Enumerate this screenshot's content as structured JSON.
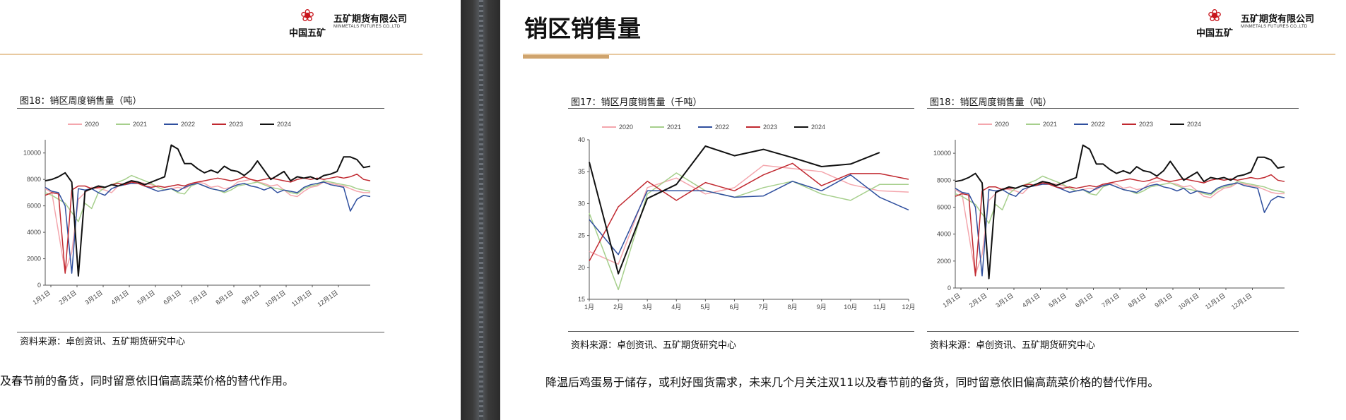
{
  "brand": {
    "name_cn": "五矿期货有限公司",
    "name_en": "MINMETALS FUTURES CO.,LTD",
    "group_cn": "中国五矿",
    "logo_icon": "minmetals-logo-icon"
  },
  "colors": {
    "accent": "#cfa46e",
    "series": [
      "#f4a6ad",
      "#a6cf8c",
      "#2f4f9e",
      "#c0282f",
      "#111111"
    ]
  },
  "left_page": {
    "figure_title": "图18：销区周度销售量（吨）",
    "source": "资料来源：卓创资讯、五矿期货研究中心",
    "body_text": "及春节前的备货，同时留意依旧偏高蔬菜价格的替代作用。"
  },
  "right_page": {
    "title": "销区销售量",
    "figure17": {
      "title": "图17：销区月度销售量（千吨）",
      "source": "资料来源：卓创资讯、五矿期货研究中心"
    },
    "figure18": {
      "title": "图18：销区周度销售量（吨）",
      "source": "资料来源：卓创资讯、五矿期货研究中心"
    },
    "body_text": "降温后鸡蛋易于储存，或利好囤货需求，未来几个月关注双11以及春节前的备货，同时留意依旧偏高蔬菜价格的替代作用。"
  },
  "chart_data": [
    {
      "id": "monthly",
      "type": "line",
      "title": "图17：销区月度销售量（千吨）",
      "categories": [
        "1月",
        "2月",
        "3月",
        "4月",
        "5月",
        "6月",
        "7月",
        "8月",
        "9月",
        "10月",
        "11月",
        "12月"
      ],
      "ylim": [
        15,
        40
      ],
      "yticks": [
        15,
        20,
        25,
        30,
        35,
        40
      ],
      "legend": "top",
      "series": [
        {
          "name": "2020",
          "color": "#f4a6ad",
          "values": [
            22.5,
            20.5,
            32.5,
            34.0,
            31.5,
            32.5,
            36.0,
            35.5,
            35.0,
            33.0,
            32.0,
            31.8
          ]
        },
        {
          "name": "2021",
          "color": "#a6cf8c",
          "values": [
            28.5,
            16.5,
            31.5,
            34.8,
            32.0,
            31.0,
            32.5,
            33.5,
            31.5,
            30.5,
            33.0,
            33.0
          ]
        },
        {
          "name": "2022",
          "color": "#2f4f9e",
          "values": [
            27.5,
            22.0,
            32.0,
            32.0,
            32.0,
            31.0,
            31.2,
            33.5,
            32.0,
            34.5,
            31.0,
            29.0
          ]
        },
        {
          "name": "2023",
          "color": "#c0282f",
          "values": [
            21.0,
            29.5,
            33.5,
            30.5,
            33.3,
            32.0,
            34.5,
            36.3,
            32.8,
            34.7,
            34.7,
            33.8
          ]
        },
        {
          "name": "2024",
          "color": "#111111",
          "values": [
            36.5,
            19.0,
            30.8,
            33.0,
            39.0,
            37.5,
            38.5,
            37.2,
            35.8,
            36.2,
            38.0,
            null
          ]
        }
      ]
    },
    {
      "id": "weekly",
      "type": "line",
      "title": "图18：销区周度销售量（吨）",
      "x_tick_labels": [
        "1月1日",
        "2月1日",
        "3月1日",
        "4月1日",
        "5月1日",
        "6月1日",
        "7月1日",
        "8月1日",
        "9月1日",
        "10月1日",
        "11月1日",
        "12月1日"
      ],
      "ylim": [
        0,
        11000
      ],
      "yticks": [
        0,
        2000,
        4000,
        6000,
        8000,
        10000
      ],
      "legend": "top",
      "series": [
        {
          "name": "2020",
          "color": "#f4a6ad",
          "values": [
            7300,
            7000,
            4000,
            1000,
            2500,
            6500,
            7000,
            7400,
            7300,
            7200,
            7000,
            7500,
            7600,
            7800,
            7800,
            7700,
            7600,
            7400,
            7200,
            7300,
            7400,
            7300,
            7600,
            7800,
            7700,
            7400,
            7500,
            7300,
            7400,
            7800,
            7900,
            8000,
            7800,
            7700,
            7500,
            7600,
            7200,
            6800,
            6700,
            7100,
            7400,
            7500,
            7800,
            7700,
            7600,
            7500,
            7300,
            7100,
            7000,
            7000
          ]
        },
        {
          "name": "2021",
          "color": "#a6cf8c",
          "values": [
            7000,
            6800,
            6500,
            6200,
            5500,
            4800,
            6200,
            5800,
            7000,
            7400,
            7600,
            7800,
            8000,
            8300,
            8100,
            7900,
            7700,
            7400,
            7200,
            7300,
            7000,
            6900,
            7500,
            7700,
            7500,
            7300,
            7200,
            7000,
            7200,
            7500,
            7600,
            7700,
            7800,
            7600,
            7400,
            7300,
            7200,
            7000,
            6900,
            7300,
            7500,
            7600,
            7900,
            7800,
            7700,
            7600,
            7500,
            7300,
            7200,
            7100
          ]
        },
        {
          "name": "2022",
          "color": "#2f4f9e",
          "values": [
            7400,
            7100,
            7000,
            6000,
            900,
            7300,
            7200,
            7300,
            7000,
            6800,
            7300,
            7500,
            7600,
            7700,
            7700,
            7500,
            7300,
            7100,
            7200,
            7300,
            7100,
            7400,
            7600,
            7700,
            7500,
            7300,
            7200,
            7100,
            7400,
            7600,
            7700,
            7500,
            7400,
            7200,
            7400,
            7000,
            7200,
            7100,
            7000,
            7400,
            7600,
            7700,
            7800,
            7600,
            7500,
            7400,
            5600,
            6500,
            6800,
            6700
          ]
        },
        {
          "name": "2023",
          "color": "#c0282f",
          "values": [
            6800,
            7000,
            6900,
            900,
            7200,
            7500,
            7500,
            7300,
            7400,
            7400,
            7600,
            7700,
            7600,
            7800,
            7700,
            7500,
            7400,
            7500,
            7400,
            7500,
            7600,
            7500,
            7700,
            7800,
            7900,
            8000,
            8100,
            8000,
            7900,
            8000,
            8200,
            8000,
            7900,
            8000,
            8100,
            8000,
            7900,
            7800,
            8000,
            8100,
            8000,
            8100,
            8000,
            8100,
            8200,
            8100,
            8200,
            8400,
            8000,
            7900
          ]
        },
        {
          "name": "2024",
          "color": "#111111",
          "values": [
            7900,
            8000,
            8200,
            8500,
            7800,
            700,
            7100,
            7300,
            7500,
            7400,
            7600,
            7500,
            7700,
            7900,
            7800,
            7600,
            7800,
            8000,
            8200,
            10600,
            10300,
            9200,
            9200,
            8800,
            8500,
            8700,
            8500,
            9000,
            8700,
            8600,
            8300,
            8700,
            9400,
            8700,
            8000,
            8300,
            8600,
            7900,
            8200,
            8100,
            8200,
            8000,
            8300,
            8400,
            8600,
            9700,
            9700,
            9500,
            8900,
            9000
          ]
        }
      ]
    }
  ]
}
